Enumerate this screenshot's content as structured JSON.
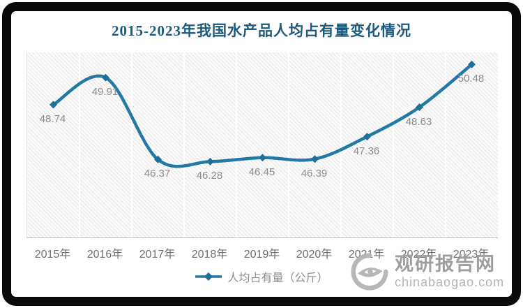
{
  "title": "2015-2023年我国水产品人均占有量变化情况",
  "chart_data": {
    "type": "line",
    "categories": [
      "2015年",
      "2016年",
      "2017年",
      "2018年",
      "2019年",
      "2020年",
      "2021年",
      "2022年",
      "2023年"
    ],
    "series": [
      {
        "name": "人均占有量（公斤）",
        "values": [
          48.74,
          49.91,
          46.37,
          46.28,
          46.45,
          46.39,
          47.36,
          48.63,
          50.48
        ]
      }
    ],
    "title": "2015-2023年我国水产品人均占有量变化情况",
    "xlabel": "",
    "ylabel": "",
    "ylim": [
      43,
      51
    ],
    "y_axis_labels_visible": false,
    "grid": "vertical-category-boundaries",
    "data_labels": true,
    "legend_position": "bottom-center",
    "marker": "diamond"
  },
  "legend": {
    "label": "人均占有量（公斤）"
  },
  "watermark": {
    "name": "观研报告网",
    "domain": "chinabaogao.com",
    "logo": "eye-swirl-icon"
  },
  "colors": {
    "line": "#2279a4",
    "marker": "#1e6f99",
    "title": "#1c5a7d",
    "axis_label": "#6e6e6e",
    "data_label": "#8c8c8c",
    "legend_text": "#8f8f8f",
    "frame": "#0a0a0a",
    "axis_line": "#bfbfbf",
    "gridline": "#ffffff",
    "watermark": "#a9a9a9"
  }
}
